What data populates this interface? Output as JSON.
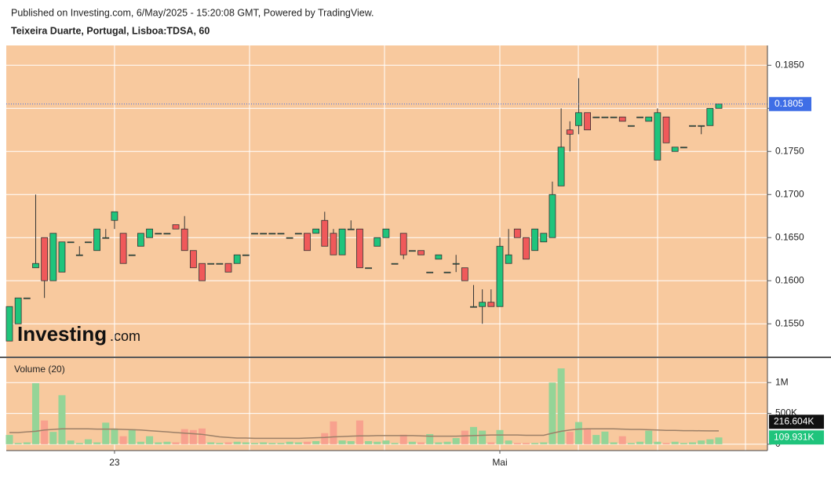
{
  "chart_data": {
    "type": "candlestick",
    "published": "Published on Investing.com, 6/May/2025 - 15:20:08 GMT, Powered by TradingView.",
    "title": "Teixeira Duarte, Portugal, Lisboa:TDSA, 60",
    "watermark": {
      "brand": "Investing",
      "suffix": ".com"
    },
    "categories": [
      null,
      null,
      null,
      null,
      null,
      null,
      null,
      null,
      null,
      null,
      null,
      null,
      "23",
      null,
      null,
      null,
      null,
      null,
      null,
      null,
      null,
      null,
      null,
      null,
      null,
      null,
      null,
      null,
      null,
      null,
      null,
      null,
      null,
      null,
      null,
      null,
      null,
      null,
      null,
      null,
      null,
      null,
      null,
      null,
      null,
      null,
      null,
      null,
      null,
      null,
      null,
      null,
      null,
      null,
      null,
      null,
      "Mai",
      null,
      null,
      null,
      null,
      null,
      null,
      null,
      null,
      null,
      null,
      null,
      null,
      null,
      null,
      null,
      null,
      null,
      null,
      null,
      null,
      null,
      null,
      null,
      null,
      null
    ],
    "open": [
      0.153,
      0.155,
      0.158,
      0.1615,
      0.165,
      0.16,
      0.161,
      0.1645,
      0.163,
      0.1645,
      0.1635,
      0.165,
      0.167,
      0.1655,
      0.163,
      0.164,
      0.165,
      0.1655,
      0.1655,
      0.1665,
      0.166,
      0.1635,
      0.162,
      0.162,
      0.162,
      0.162,
      0.162,
      0.163,
      0.1655,
      0.1655,
      0.1655,
      0.1655,
      0.165,
      0.1655,
      0.1655,
      0.1655,
      0.167,
      0.1655,
      0.163,
      0.166,
      0.166,
      0.1615,
      0.164,
      0.165,
      0.162,
      0.1655,
      0.1635,
      0.1635,
      0.161,
      0.1625,
      0.161,
      0.162,
      0.1615,
      0.157,
      0.157,
      0.1575,
      0.157,
      0.162,
      0.166,
      0.165,
      0.1635,
      0.1645,
      0.165,
      0.171,
      0.1775,
      0.178,
      0.1795,
      0.179,
      0.179,
      0.179,
      0.179,
      0.178,
      0.179,
      0.1785,
      0.174,
      0.179,
      0.175,
      0.1755,
      0.178,
      0.178,
      0.178,
      0.18
    ],
    "high": [
      0.157,
      0.158,
      0.158,
      0.17,
      0.165,
      0.1655,
      0.1645,
      0.1645,
      0.164,
      0.1645,
      0.166,
      0.166,
      0.168,
      0.1655,
      0.163,
      0.1655,
      0.166,
      0.1655,
      0.1655,
      0.1665,
      0.1675,
      0.1635,
      0.162,
      0.162,
      0.162,
      0.162,
      0.163,
      0.163,
      0.1655,
      0.1655,
      0.1655,
      0.1655,
      0.165,
      0.1655,
      0.1655,
      0.166,
      0.168,
      0.166,
      0.166,
      0.167,
      0.166,
      0.1615,
      0.165,
      0.166,
      0.162,
      0.1655,
      0.1635,
      0.1635,
      0.161,
      0.163,
      0.161,
      0.163,
      0.1615,
      0.1595,
      0.159,
      0.159,
      0.165,
      0.166,
      0.166,
      0.165,
      0.166,
      0.1655,
      0.1715,
      0.18,
      0.1785,
      0.1835,
      0.1795,
      0.179,
      0.179,
      0.179,
      0.179,
      0.178,
      0.179,
      0.179,
      0.18,
      0.179,
      0.1755,
      0.1755,
      0.178,
      0.178,
      0.18,
      0.1805
    ],
    "low": [
      0.153,
      0.155,
      0.158,
      0.1615,
      0.158,
      0.16,
      0.161,
      0.1645,
      0.163,
      0.1645,
      0.1635,
      0.165,
      0.166,
      0.162,
      0.163,
      0.164,
      0.165,
      0.1655,
      0.1655,
      0.166,
      0.1635,
      0.1615,
      0.16,
      0.162,
      0.162,
      0.161,
      0.162,
      0.163,
      0.1655,
      0.1655,
      0.1655,
      0.1655,
      0.165,
      0.1655,
      0.1635,
      0.1655,
      0.164,
      0.163,
      0.163,
      0.166,
      0.1615,
      0.1615,
      0.164,
      0.165,
      0.162,
      0.1625,
      0.1635,
      0.163,
      0.161,
      0.1625,
      0.161,
      0.161,
      0.16,
      0.157,
      0.155,
      0.157,
      0.157,
      0.162,
      0.165,
      0.1625,
      0.1635,
      0.1645,
      0.165,
      0.171,
      0.175,
      0.177,
      0.1775,
      0.179,
      0.179,
      0.179,
      0.1785,
      0.178,
      0.179,
      0.1785,
      0.174,
      0.176,
      0.175,
      0.1755,
      0.178,
      0.177,
      0.178,
      0.18
    ],
    "close": [
      0.157,
      0.158,
      0.158,
      0.162,
      0.16,
      0.1655,
      0.1645,
      0.1645,
      0.163,
      0.1645,
      0.166,
      0.165,
      0.168,
      0.162,
      0.163,
      0.1655,
      0.166,
      0.1655,
      0.1655,
      0.166,
      0.1635,
      0.1615,
      0.16,
      0.162,
      0.162,
      0.161,
      0.163,
      0.163,
      0.1655,
      0.1655,
      0.1655,
      0.1655,
      0.165,
      0.1655,
      0.1635,
      0.166,
      0.164,
      0.163,
      0.166,
      0.166,
      0.1615,
      0.1615,
      0.165,
      0.166,
      0.162,
      0.163,
      0.1635,
      0.163,
      0.161,
      0.163,
      0.161,
      0.162,
      0.16,
      0.157,
      0.1575,
      0.157,
      0.164,
      0.163,
      0.165,
      0.1625,
      0.166,
      0.1655,
      0.17,
      0.1755,
      0.177,
      0.1795,
      0.1775,
      0.179,
      0.179,
      0.179,
      0.1785,
      0.178,
      0.179,
      0.179,
      0.1795,
      0.176,
      0.1755,
      0.1755,
      0.178,
      0.178,
      0.18,
      0.1805
    ],
    "up_color": "#1fc47c",
    "down_color": "#f0595a",
    "last_color": "#3f6ee6",
    "last_label": "0.1805",
    "ylim": [
      0.1512,
      0.1873
    ],
    "yticks": [
      {
        "value": 0.155,
        "label": "0.1550"
      },
      {
        "value": 0.16,
        "label": "0.1600"
      },
      {
        "value": 0.165,
        "label": "0.1650"
      },
      {
        "value": 0.17,
        "label": "0.1700"
      },
      {
        "value": 0.175,
        "label": "0.1750"
      },
      {
        "value": 0.18,
        "label": "0.1800"
      },
      {
        "value": 0.185,
        "label": "0.1850"
      }
    ],
    "grid": true,
    "volume": {
      "title": "Volume (20)",
      "values": [
        150000,
        20000,
        30000,
        990000,
        385000,
        200000,
        795000,
        60000,
        20000,
        80000,
        30000,
        350000,
        255000,
        130000,
        245000,
        40000,
        130000,
        30000,
        40000,
        30000,
        245000,
        230000,
        255000,
        30000,
        20000,
        30000,
        40000,
        30000,
        20000,
        30000,
        20000,
        20000,
        40000,
        30000,
        40000,
        50000,
        180000,
        370000,
        60000,
        50000,
        385000,
        50000,
        40000,
        60000,
        20000,
        155000,
        40000,
        30000,
        165000,
        30000,
        40000,
        100000,
        220000,
        280000,
        220000,
        30000,
        230000,
        60000,
        20000,
        20000,
        20000,
        30000,
        1000000,
        1230000,
        200000,
        360000,
        255000,
        150000,
        205000,
        30000,
        130000,
        20000,
        40000,
        220000,
        40000,
        20000,
        40000,
        20000,
        30000,
        60000,
        80000,
        109931
      ],
      "ma": [
        190000,
        190000,
        200000,
        210000,
        230000,
        240000,
        250000,
        250000,
        250000,
        250000,
        245000,
        245000,
        245000,
        240000,
        235000,
        230000,
        220000,
        210000,
        200000,
        190000,
        180000,
        170000,
        160000,
        140000,
        120000,
        110000,
        100000,
        100000,
        95000,
        95000,
        95000,
        95000,
        95000,
        95000,
        100000,
        105000,
        110000,
        120000,
        125000,
        130000,
        135000,
        135000,
        140000,
        140000,
        140000,
        140000,
        140000,
        135000,
        130000,
        130000,
        130000,
        130000,
        135000,
        140000,
        145000,
        150000,
        150000,
        150000,
        150000,
        145000,
        145000,
        145000,
        180000,
        210000,
        230000,
        245000,
        250000,
        250000,
        250000,
        250000,
        245000,
        240000,
        240000,
        235000,
        230000,
        225000,
        225000,
        220000,
        220000,
        218000,
        217000,
        216604
      ],
      "up_color": "#95d497",
      "down_color": "#f8a18e",
      "ma_color": "#9c8068",
      "last_label": "109.931K",
      "ma_last_label": "216.604K",
      "ylim": [
        -103000,
        1397000
      ],
      "yticks": [
        0,
        {
          "value": 500000,
          "label": "500K"
        },
        {
          "value": 1000000,
          "label": "1M"
        }
      ]
    }
  }
}
